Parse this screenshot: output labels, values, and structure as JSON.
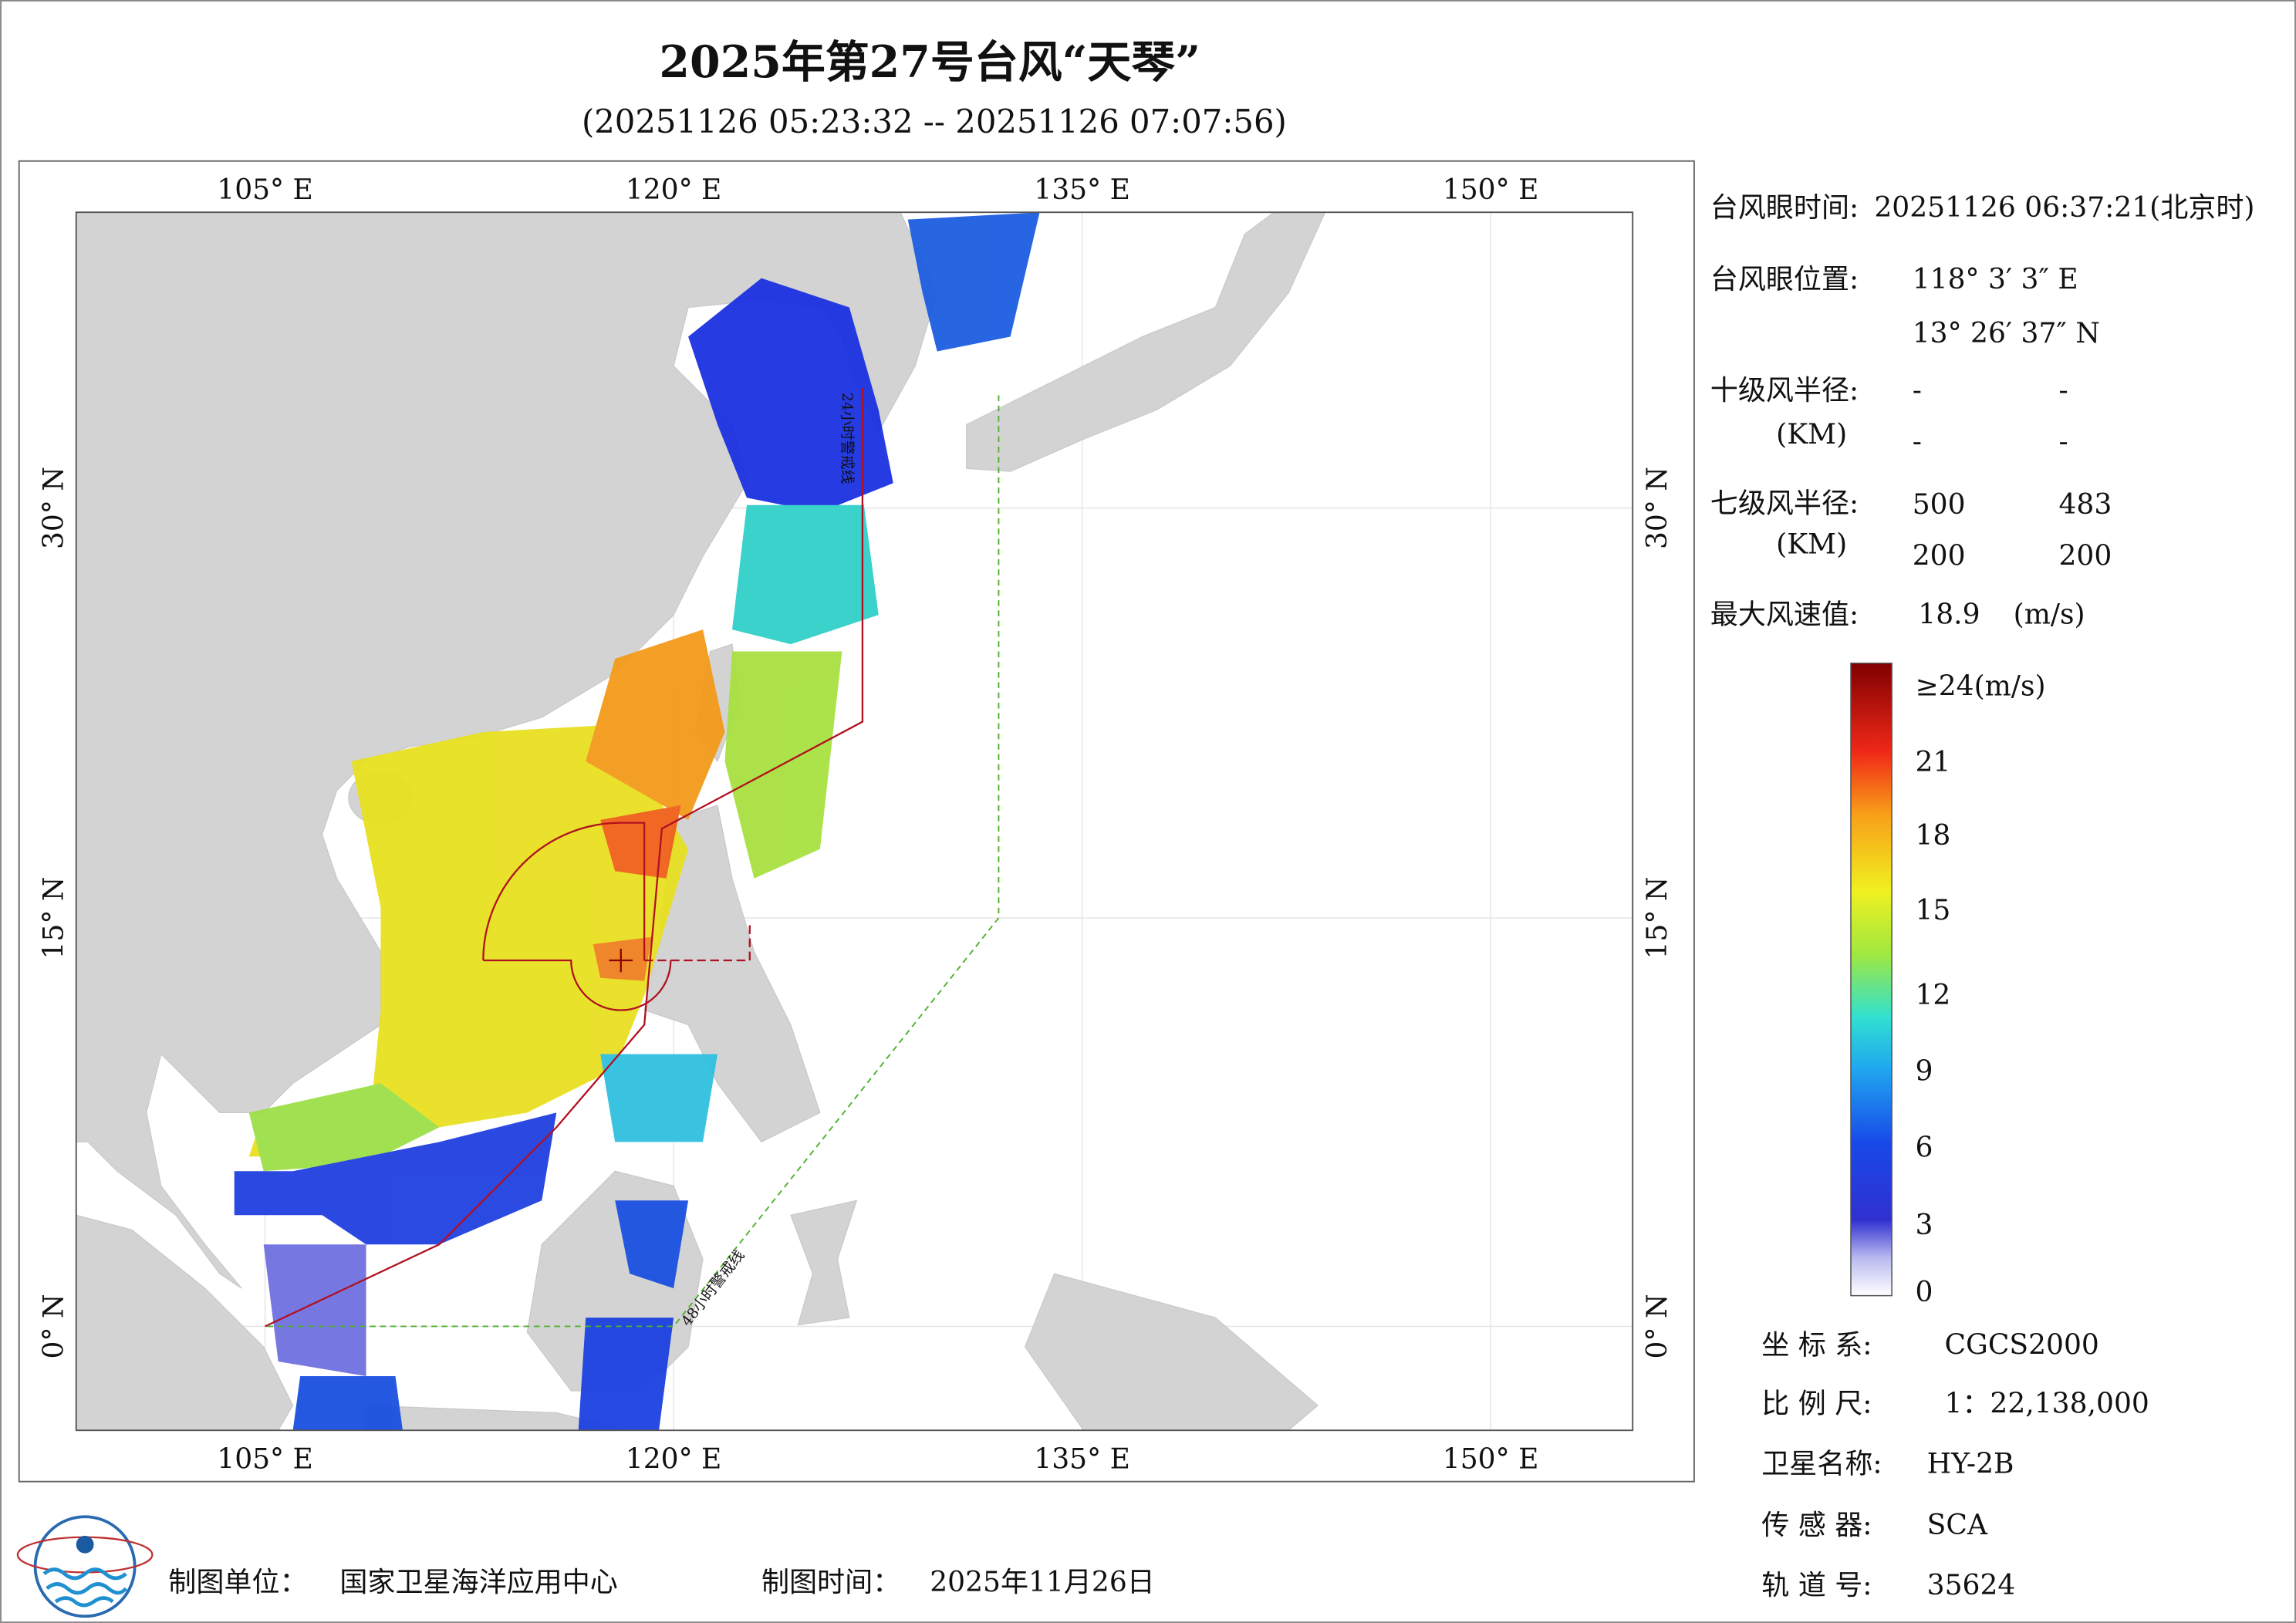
{
  "header": {
    "title": "2025年第27号台风“天琴”",
    "subtitle": "(20251126 05:23:32 -- 20251126 07:07:56)"
  },
  "map": {
    "lon_labels": [
      "105° E",
      "120° E",
      "135° E",
      "150° E"
    ],
    "lat_labels": [
      "30° N",
      "15° N",
      "0° N"
    ],
    "warning_lines": [
      "24小时警戒线",
      "48小时警戒线"
    ]
  },
  "info": {
    "eye_time": {
      "label": "台风眼时间:",
      "value": "20251126 06:37:21(北京时)"
    },
    "eye_position": {
      "label": "台风眼位置:",
      "lon": "118° 3′ 3″ E",
      "lat": "13° 26′ 37″ N"
    },
    "r10": {
      "label": "十级风半径:",
      "unit": "(KM)",
      "values": [
        "-",
        "-",
        "-",
        "-"
      ]
    },
    "r7": {
      "label": "七级风半径:",
      "unit": "(KM)",
      "values": [
        500,
        483,
        200,
        200
      ]
    },
    "max_wind": {
      "label": "最大风速值:",
      "value": 18.9,
      "unit": "(m/s)"
    }
  },
  "colorbar": {
    "labels": [
      "≥24(m/s)",
      21,
      18,
      15,
      12,
      9,
      6,
      3,
      0
    ]
  },
  "meta": [
    {
      "label": "坐 标 系:",
      "value": "CGCS2000"
    },
    {
      "label": "比 例 尺:",
      "value": "1：22,138,000"
    },
    {
      "label": "卫星名称:",
      "value": "HY-2B"
    },
    {
      "label": "传 感 器:",
      "value": "SCA"
    },
    {
      "label": "轨 道 号:",
      "value": "35624"
    }
  ],
  "footer": {
    "org_label": "制图单位：",
    "org": "国家卫星海洋应用中心",
    "time_label": "制图时间：",
    "time": "2025年11月26日"
  }
}
